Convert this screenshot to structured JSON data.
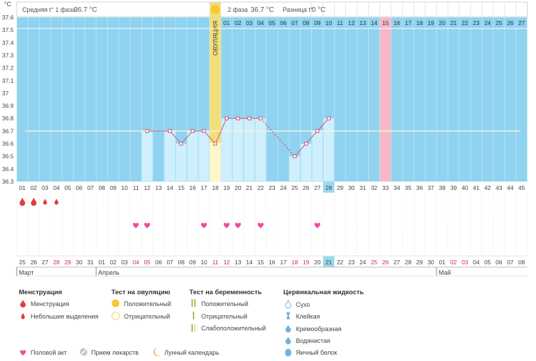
{
  "header": {
    "phase1_label": "Средняя t° 1 фаза",
    "phase1_temp": "36.7 °C",
    "phase2_label": "2 фаза",
    "phase2_temp": "36.7 °C",
    "diff_label": "Разница t°",
    "diff_value": "0 °C"
  },
  "chart_data": {
    "type": "line",
    "unit": "°C",
    "ylim": [
      36.3,
      37.6
    ],
    "yticks": [
      "37.6",
      "37.5",
      "37.4",
      "37.3",
      "37.2",
      "37.1",
      "37",
      "36.9",
      "36.8",
      "36.7",
      "36.6",
      "36.5",
      "36.4",
      "36.3"
    ],
    "cycle_days": [
      "01",
      "02",
      "03",
      "04",
      "05",
      "06",
      "07",
      "08",
      "09",
      "10",
      "11",
      "12",
      "13",
      "14",
      "15",
      "16",
      "17",
      "18",
      "19",
      "20",
      "21",
      "22",
      "23",
      "24",
      "25",
      "26",
      "27",
      "28",
      "29",
      "30",
      "31",
      "32",
      "33",
      "34",
      "35",
      "36",
      "37",
      "38",
      "39",
      "40",
      "41",
      "42",
      "43",
      "44",
      "45"
    ],
    "top_days": [
      "",
      "",
      "",
      "",
      "",
      "",
      "",
      "",
      "",
      "",
      "",
      "",
      "",
      "",
      "",
      "",
      "",
      "",
      "01",
      "02",
      "03",
      "04",
      "05",
      "06",
      "07",
      "08",
      "09",
      "10",
      "11",
      "12",
      "13",
      "14",
      "15",
      "16",
      "17",
      "18",
      "19",
      "20",
      "21",
      "22",
      "23",
      "24",
      "25",
      "26",
      "27"
    ],
    "calendar_dates": [
      "25",
      "26",
      "27",
      "28",
      "29",
      "30",
      "31",
      "01",
      "02",
      "03",
      "04",
      "05",
      "06",
      "07",
      "08",
      "09",
      "10",
      "11",
      "12",
      "13",
      "14",
      "15",
      "16",
      "17",
      "18",
      "19",
      "20",
      "21",
      "22",
      "23",
      "24",
      "25",
      "26",
      "27",
      "28",
      "29",
      "30",
      "01",
      "02",
      "03",
      "04",
      "05",
      "06",
      "07",
      "08"
    ],
    "red_date_indices": [
      3,
      4,
      10,
      11,
      17,
      18,
      24,
      25,
      31,
      32,
      38,
      39
    ],
    "months": [
      {
        "label": "Март",
        "start_index": 0
      },
      {
        "label": "Апрель",
        "start_index": 7
      },
      {
        "label": "Май",
        "start_index": 37
      }
    ],
    "temperatures": [
      {
        "day": 12,
        "value": 36.7
      },
      {
        "day": 14,
        "value": 36.7
      },
      {
        "day": 15,
        "value": 36.6
      },
      {
        "day": 16,
        "value": 36.7
      },
      {
        "day": 17,
        "value": 36.7
      },
      {
        "day": 18,
        "value": 36.6
      },
      {
        "day": 19,
        "value": 36.8
      },
      {
        "day": 20,
        "value": 36.8
      },
      {
        "day": 21,
        "value": 36.8
      },
      {
        "day": 22,
        "value": 36.8
      },
      {
        "day": 25,
        "value": 36.5
      },
      {
        "day": 26,
        "value": 36.6
      },
      {
        "day": 27,
        "value": 36.7
      },
      {
        "day": 28,
        "value": 36.8
      }
    ],
    "dashed_segment": {
      "from_day": 22,
      "to_day": 25
    },
    "average_line": 36.7,
    "ovulation_day": 18,
    "ovulation_label": "ОВУЛЯЦИЯ",
    "highlight_column_day": 33,
    "current_day": 28,
    "menstruation": [
      {
        "day": 1,
        "kind": "heavy"
      },
      {
        "day": 2,
        "kind": "heavy"
      },
      {
        "day": 3,
        "kind": "light"
      },
      {
        "day": 4,
        "kind": "light"
      }
    ],
    "intercourse_days": [
      11,
      12,
      17,
      19,
      20,
      22,
      27
    ]
  },
  "legend": {
    "menstruation": {
      "title": "Менструация",
      "items": [
        "Менструация",
        "Небольшие выделения"
      ]
    },
    "ovulation_test": {
      "title": "Тест на овуляцию",
      "items": [
        "Положительный",
        "Отрицательный"
      ]
    },
    "pregnancy_test": {
      "title": "Тест на беременность",
      "items": [
        "Положительный",
        "Отрицательный",
        "Слабоположительный"
      ]
    },
    "cervical": {
      "title": "Цервикальная жидкость",
      "items": [
        "Сухо",
        "Клейкая",
        "Кремообразная",
        "Водянистая",
        "Яичный белок"
      ]
    },
    "bottom": [
      "Половой акт",
      "Прием лекарств",
      "Лунный календарь"
    ]
  },
  "colors": {
    "blue_bg": "#8fd3f0",
    "bar": "#cfeffc",
    "bar_border": "#a6dff5",
    "line": "#d0557a",
    "ovulation": "#f3df79",
    "ovulation_light": "#fdf6c8",
    "pink_column": "#f7b7c9",
    "current": "#9bd9ef",
    "heart": "#e8519f",
    "drop": "#e23c3c",
    "green": "#a3c444",
    "cervical": "#6fb3dc"
  }
}
